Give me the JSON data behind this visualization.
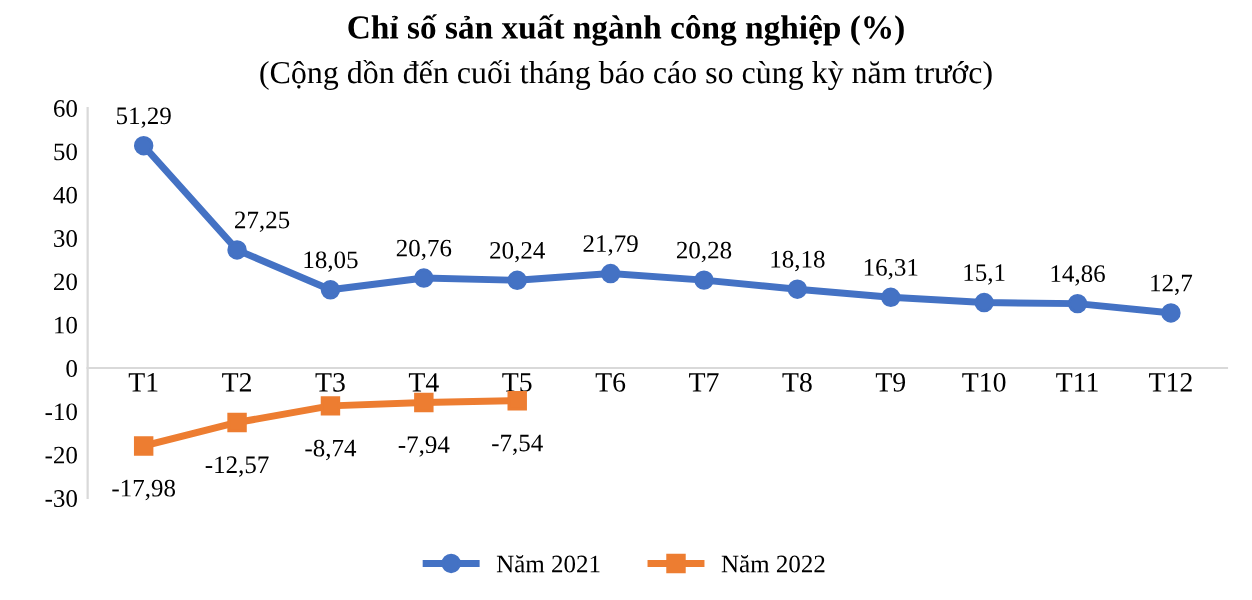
{
  "chart_data": {
    "type": "line",
    "title": "Chỉ số sản xuất ngành công nghiệp (%)",
    "subtitle": "(Cộng dồn đến cuối tháng báo cáo so cùng kỳ năm trước)",
    "categories": [
      "T1",
      "T2",
      "T3",
      "T4",
      "T5",
      "T6",
      "T7",
      "T8",
      "T9",
      "T10",
      "T11",
      "T12"
    ],
    "series": [
      {
        "name": "Năm 2021",
        "color": "#4472c4",
        "marker": "circle",
        "values": [
          51.29,
          27.25,
          18.05,
          20.76,
          20.24,
          21.79,
          20.28,
          18.18,
          16.31,
          15.1,
          14.86,
          12.7
        ],
        "value_labels": [
          "51,29",
          "27,25",
          "18,05",
          "20,76",
          "20,24",
          "21,79",
          "20,28",
          "18,18",
          "16,31",
          "15,1",
          "14,86",
          "12,7"
        ]
      },
      {
        "name": "Năm 2022",
        "color": "#ed7d31",
        "marker": "square",
        "values": [
          -17.98,
          -12.57,
          -8.74,
          -7.94,
          -7.54,
          null,
          null,
          null,
          null,
          null,
          null,
          null
        ],
        "value_labels": [
          "-17,98",
          "-12,57",
          "-8,74",
          "-7,94",
          "-7,54",
          null,
          null,
          null,
          null,
          null,
          null,
          null
        ]
      }
    ],
    "ylim": [
      -30,
      60
    ],
    "yticks": [
      -30,
      -20,
      -10,
      0,
      10,
      20,
      30,
      40,
      50,
      60
    ],
    "grid": false,
    "legend": "bottom",
    "line_style": "solid"
  }
}
